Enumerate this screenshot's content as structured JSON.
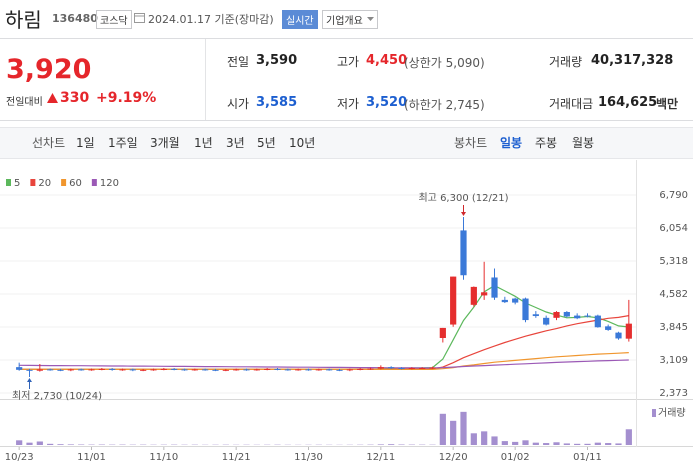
{
  "header": {
    "name": "하림",
    "code": "136480",
    "market": "코스닥",
    "date": "2024.01.17 기준(장마감)",
    "realtime": "실시간",
    "company_info": "기업개요"
  },
  "summary": {
    "price": "3,920",
    "change_label": "전일대비",
    "change": "330",
    "change_pct": "+9.19%",
    "items": [
      {
        "label": "전일",
        "value": "3,590"
      },
      {
        "label": "고가",
        "value": "4,450",
        "note": "(상한가 5,090)"
      },
      {
        "label": "거래량",
        "value": "40,317,328"
      },
      {
        "label": "시가",
        "value": "3,585"
      },
      {
        "label": "저가",
        "value": "3,520",
        "note": "(하한가 2,745)"
      },
      {
        "label": "거래대금",
        "value": "164,625",
        "unit": "백만"
      }
    ]
  },
  "toolbar": {
    "line_chart": "선차트",
    "periods": [
      "1일",
      "1주일",
      "3개월",
      "1년",
      "3년",
      "5년",
      "10년"
    ],
    "candle_chart": "봉차트",
    "candle_periods": [
      "일봉",
      "주봉",
      "월봉"
    ]
  },
  "chart_data": {
    "type": "candlestick",
    "categories": [
      "10/23",
      null,
      null,
      null,
      null,
      null,
      null,
      "11/01",
      null,
      null,
      null,
      null,
      null,
      null,
      "11/10",
      null,
      null,
      null,
      null,
      null,
      null,
      "11/21",
      null,
      null,
      null,
      null,
      null,
      null,
      "11/30",
      null,
      null,
      null,
      null,
      null,
      null,
      "12/11",
      null,
      null,
      null,
      null,
      null,
      null,
      "12/20",
      null,
      null,
      null,
      null,
      null,
      "01/02",
      null,
      null,
      null,
      null,
      null,
      null,
      "01/11",
      null,
      null,
      null,
      null
    ],
    "open": [
      2950,
      2890,
      2870,
      2900,
      2890,
      2880,
      2900,
      2890,
      2900,
      2910,
      2890,
      2900,
      2880,
      2890,
      2900,
      2910,
      2900,
      2890,
      2900,
      2890,
      2880,
      2890,
      2900,
      2890,
      2900,
      2910,
      2900,
      2890,
      2900,
      2890,
      2900,
      2890,
      2880,
      2900,
      2910,
      2920,
      2950,
      2930,
      2920,
      2930,
      2930,
      3600,
      3900,
      6000,
      4340,
      4550,
      4950,
      4450,
      4480,
      4480,
      4130,
      4050,
      4050,
      4180,
      4100,
      4100,
      4100,
      3860,
      3720,
      3585
    ],
    "high": [
      3050,
      2910,
      3020,
      2920,
      2910,
      2920,
      2920,
      2920,
      2930,
      2930,
      2920,
      2920,
      2910,
      2920,
      2930,
      2930,
      2920,
      2920,
      2920,
      2910,
      2910,
      2920,
      2920,
      2920,
      2930,
      2930,
      2920,
      2920,
      2920,
      2920,
      2920,
      2910,
      2920,
      2930,
      2940,
      2990,
      2970,
      2950,
      2950,
      2950,
      2960,
      3825,
      4970,
      6300,
      4750,
      5300,
      5150,
      4520,
      4500,
      4500,
      4200,
      4100,
      4200,
      4200,
      4150,
      4150,
      4120,
      3900,
      3740,
      4450
    ],
    "low": [
      2870,
      2730,
      2850,
      2870,
      2860,
      2860,
      2870,
      2870,
      2880,
      2870,
      2870,
      2860,
      2860,
      2870,
      2880,
      2880,
      2870,
      2870,
      2870,
      2860,
      2860,
      2870,
      2870,
      2870,
      2880,
      2880,
      2870,
      2870,
      2870,
      2870,
      2870,
      2860,
      2860,
      2880,
      2890,
      2900,
      2910,
      2900,
      2900,
      2910,
      2910,
      3500,
      3850,
      4900,
      4300,
      4450,
      4450,
      4380,
      4350,
      3950,
      4050,
      3880,
      4000,
      4060,
      4020,
      4060,
      3830,
      3760,
      3560,
      3520
    ],
    "close": [
      2890,
      2870,
      2900,
      2890,
      2880,
      2900,
      2890,
      2900,
      2910,
      2890,
      2900,
      2880,
      2890,
      2900,
      2910,
      2900,
      2890,
      2900,
      2890,
      2880,
      2890,
      2900,
      2890,
      2900,
      2910,
      2900,
      2890,
      2900,
      2890,
      2900,
      2890,
      2880,
      2900,
      2910,
      2920,
      2950,
      2930,
      2920,
      2930,
      2930,
      2940,
      3825,
      4970,
      5000,
      4740,
      4620,
      4500,
      4400,
      4390,
      4000,
      4090,
      3900,
      4180,
      4080,
      4040,
      4090,
      3840,
      3780,
      3590,
      3920
    ],
    "up_color": "#e52e2e",
    "down_color": "#3b79d8",
    "series": [
      {
        "name": "5",
        "color": "#5cb85c",
        "values": [
          2900,
          2900,
          2900,
          2900,
          2900,
          2900,
          2900,
          2900,
          2900,
          2900,
          2900,
          2900,
          2900,
          2900,
          2900,
          2900,
          2900,
          2900,
          2900,
          2900,
          2900,
          2900,
          2900,
          2900,
          2900,
          2900,
          2900,
          2900,
          2900,
          2900,
          2900,
          2900,
          2900,
          2900,
          2900,
          2910,
          2920,
          2930,
          2930,
          2935,
          2940,
          3130,
          3560,
          3990,
          4290,
          4630,
          4770,
          4650,
          4530,
          4380,
          4280,
          4180,
          4110,
          4050,
          4060,
          4080,
          4050,
          3970,
          3870,
          3845
        ]
      },
      {
        "name": "20",
        "color": "#e8453c",
        "values": [
          2900,
          2900,
          2900,
          2900,
          2900,
          2900,
          2900,
          2900,
          2900,
          2900,
          2900,
          2900,
          2900,
          2900,
          2900,
          2900,
          2900,
          2900,
          2900,
          2900,
          2900,
          2900,
          2900,
          2900,
          2900,
          2900,
          2900,
          2900,
          2900,
          2900,
          2900,
          2900,
          2900,
          2900,
          2900,
          2900,
          2905,
          2905,
          2910,
          2910,
          2910,
          2950,
          3050,
          3160,
          3250,
          3340,
          3420,
          3500,
          3570,
          3640,
          3700,
          3760,
          3810,
          3870,
          3920,
          3960,
          4000,
          4040,
          4060,
          4100
        ]
      },
      {
        "name": "60",
        "color": "#f0962e",
        "values": [
          2900,
          2900,
          2900,
          2900,
          2900,
          2900,
          2900,
          2900,
          2900,
          2900,
          2900,
          2900,
          2900,
          2900,
          2900,
          2900,
          2900,
          2900,
          2900,
          2900,
          2900,
          2900,
          2900,
          2900,
          2900,
          2900,
          2900,
          2900,
          2900,
          2900,
          2900,
          2900,
          2900,
          2900,
          2900,
          2900,
          2900,
          2900,
          2900,
          2900,
          2900,
          2915,
          2940,
          2975,
          3000,
          3030,
          3060,
          3080,
          3100,
          3120,
          3140,
          3160,
          3180,
          3195,
          3210,
          3225,
          3240,
          3250,
          3260,
          3275
        ]
      },
      {
        "name": "120",
        "color": "#9b59b6",
        "values": [
          2990,
          2988,
          2987,
          2985,
          2984,
          2982,
          2981,
          2979,
          2978,
          2976,
          2975,
          2973,
          2972,
          2970,
          2969,
          2967,
          2966,
          2964,
          2963,
          2961,
          2960,
          2958,
          2957,
          2955,
          2954,
          2952,
          2951,
          2949,
          2948,
          2946,
          2945,
          2943,
          2942,
          2940,
          2939,
          2937,
          2936,
          2934,
          2933,
          2931,
          2930,
          2940,
          2950,
          2965,
          2975,
          2985,
          2995,
          3005,
          3015,
          3025,
          3035,
          3045,
          3055,
          3065,
          3073,
          3080,
          3088,
          3095,
          3102,
          3110
        ]
      }
    ],
    "ylim": [
      2373,
      6790
    ],
    "yticks": [
      {
        "value": 6790,
        "label": "6,790"
      },
      {
        "value": 6054,
        "label": "6,054"
      },
      {
        "value": 5318,
        "label": "5,318"
      },
      {
        "value": 4582,
        "label": "4,582"
      },
      {
        "value": 3845,
        "label": "3,845"
      },
      {
        "value": 3109,
        "label": "3,109"
      },
      {
        "value": 2373,
        "label": "2,373"
      }
    ],
    "grid": true,
    "high_label": "최고 6,300 (12/21)",
    "high_color": "#d0282c",
    "low_label": "최저 2,730 (10/24)",
    "low_color": "#2f62b8",
    "volume": {
      "name": "거래량",
      "color": "#a48fcf",
      "ylim": [
        0,
        100000000
      ],
      "values": [
        12000000,
        6000000,
        9000000,
        3000000,
        2000000,
        1500000,
        1200000,
        1000000,
        1100000,
        900000,
        1000000,
        800000,
        900000,
        700000,
        800000,
        900000,
        700000,
        800000,
        600000,
        700000,
        800000,
        600000,
        700000,
        600000,
        700000,
        800000,
        600000,
        500000,
        600000,
        700000,
        600000,
        500000,
        600000,
        700000,
        900000,
        1500000,
        2000000,
        1200000,
        1000000,
        900000,
        800000,
        80000000,
        62000000,
        85000000,
        30000000,
        35000000,
        22000000,
        10000000,
        8000000,
        12000000,
        6000000,
        5000000,
        7000000,
        4000000,
        3000000,
        3000000,
        6000000,
        5000000,
        4000000,
        40317328
      ]
    }
  }
}
